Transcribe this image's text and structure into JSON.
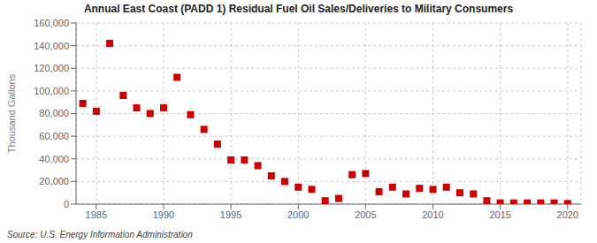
{
  "chart_data": {
    "type": "scatter",
    "title": "Annual East Coast (PADD 1) Residual Fuel Oil Sales/Deliveries to Military Consumers",
    "y_label": "Thousand Gallons",
    "annotations": [
      "Source: U.S. Energy Information Administration"
    ],
    "x": [
      1984,
      1985,
      1986,
      1987,
      1988,
      1989,
      1990,
      1991,
      1992,
      1993,
      1994,
      1995,
      1996,
      1997,
      1998,
      1999,
      2000,
      2001,
      2002,
      2003,
      2004,
      2005,
      2006,
      2007,
      2008,
      2009,
      2010,
      2011,
      2012,
      2013,
      2014,
      2015,
      2016,
      2017,
      2018,
      2019,
      2020
    ],
    "values": [
      89000,
      82000,
      142000,
      96000,
      85000,
      80000,
      85000,
      112000,
      79000,
      66000,
      53000,
      39000,
      39000,
      34000,
      25000,
      20000,
      15000,
      13000,
      3000,
      5000,
      26000,
      27000,
      11000,
      15000,
      9000,
      14000,
      13000,
      15000,
      10000,
      9000,
      3000,
      1000,
      1000,
      1000,
      1000,
      1000,
      500
    ],
    "color": "#cc0000",
    "marker": "square",
    "xlim": [
      1983.5,
      2021
    ],
    "xticks": [
      1985,
      1990,
      1995,
      2000,
      2005,
      2010,
      2015,
      2020
    ],
    "ylim": [
      0,
      160000
    ],
    "yticks": [
      0,
      {
        "value": 20000,
        "label": "20,000"
      },
      {
        "value": 40000,
        "label": "40,000"
      },
      {
        "value": 60000,
        "label": "60,000"
      },
      {
        "value": 80000,
        "label": "80,000"
      },
      {
        "value": 100000,
        "label": "100,000"
      },
      {
        "value": 120000,
        "label": "120,000"
      },
      {
        "value": 140000,
        "label": "140,000"
      },
      {
        "value": 160000,
        "label": "160,000"
      }
    ],
    "grid": true
  }
}
